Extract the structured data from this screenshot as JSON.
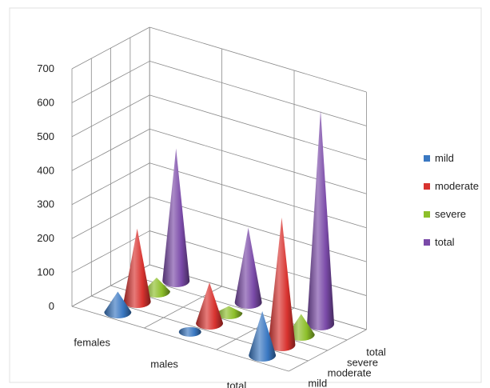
{
  "chart_data": {
    "type": "bar",
    "bar_shape": "cone-3d",
    "categories": [
      "females",
      "males",
      "total"
    ],
    "depth_categories": [
      "mild",
      "moderate",
      "severe",
      "total"
    ],
    "series": [
      {
        "name": "mild",
        "values": [
          60,
          10,
          130
        ],
        "color": "#3a78c2"
      },
      {
        "name": "moderate",
        "values": [
          215,
          120,
          375
        ],
        "color": "#d8332f"
      },
      {
        "name": "severe",
        "values": [
          40,
          20,
          60
        ],
        "color": "#8dbf2a"
      },
      {
        "name": "total",
        "values": [
          390,
          220,
          630
        ],
        "color": "#7a4aa8"
      }
    ],
    "y_ticks": [
      "0",
      "100",
      "200",
      "300",
      "400",
      "500",
      "600",
      "700"
    ],
    "ylim": [
      0,
      700
    ],
    "grid": true,
    "legend_position": "right",
    "legend": [
      "mild",
      "moderate",
      "severe",
      "total"
    ]
  }
}
